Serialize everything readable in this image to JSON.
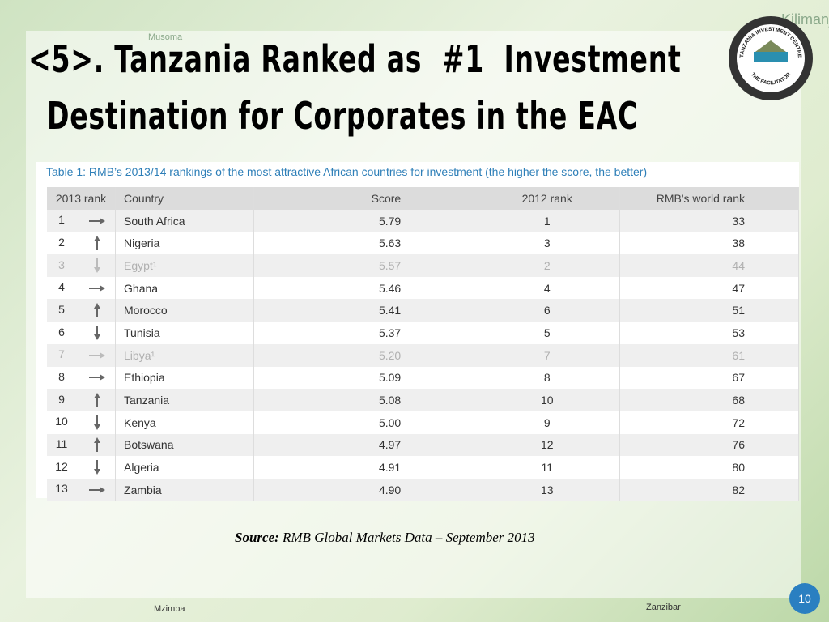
{
  "title_line1": "<5>. Tanzania Ranked as  #1  Investment",
  "title_line2": "Destination for Corporates in the EAC",
  "logo": {
    "top": "TANZANIA INVESTMENT CENTRE",
    "bottom": "THE FACILITATOR"
  },
  "map_labels": [
    "Kilimanjaro",
    "Musoma",
    "Zanzibar",
    "Mzimba"
  ],
  "table": {
    "caption": "Table 1: RMB’s 2013/14 rankings of the most attractive African countries for investment (the higher the score, the better)",
    "header": [
      "2013 rank",
      "Country",
      "Score",
      "2012  rank",
      "RMB's world rank"
    ],
    "rows": [
      [
        "1",
        "South Africa",
        "5.79",
        "1",
        "33"
      ],
      [
        "2",
        "Nigeria",
        "5.63",
        "3",
        "38"
      ],
      [
        "3",
        "Egypt¹",
        "5.57",
        "2",
        "44"
      ],
      [
        "4",
        "Ghana",
        "5.46",
        "4",
        "47"
      ],
      [
        "5",
        "Morocco",
        "5.41",
        "6",
        "51"
      ],
      [
        "6",
        "Tunisia",
        "5.37",
        "5",
        "53"
      ],
      [
        "7",
        "Libya¹",
        "5.20",
        "7",
        "61"
      ],
      [
        "8",
        "Ethiopia",
        "5.09",
        "8",
        "67"
      ],
      [
        "9",
        "Tanzania",
        "5.08",
        "10",
        "68"
      ],
      [
        "10",
        "Kenya",
        "5.00",
        "9",
        "72"
      ],
      [
        "11",
        "Botswana",
        "4.97",
        "12",
        "76"
      ],
      [
        "12",
        "Algeria",
        "4.91",
        "11",
        "80"
      ],
      [
        "13",
        "Zambia",
        "4.90",
        "13",
        "82"
      ]
    ],
    "muted_rows": [
      2,
      6
    ]
  },
  "source_label": "Source:",
  "source": "RMB Global Markets Data – September 2013",
  "page_number": "10"
}
